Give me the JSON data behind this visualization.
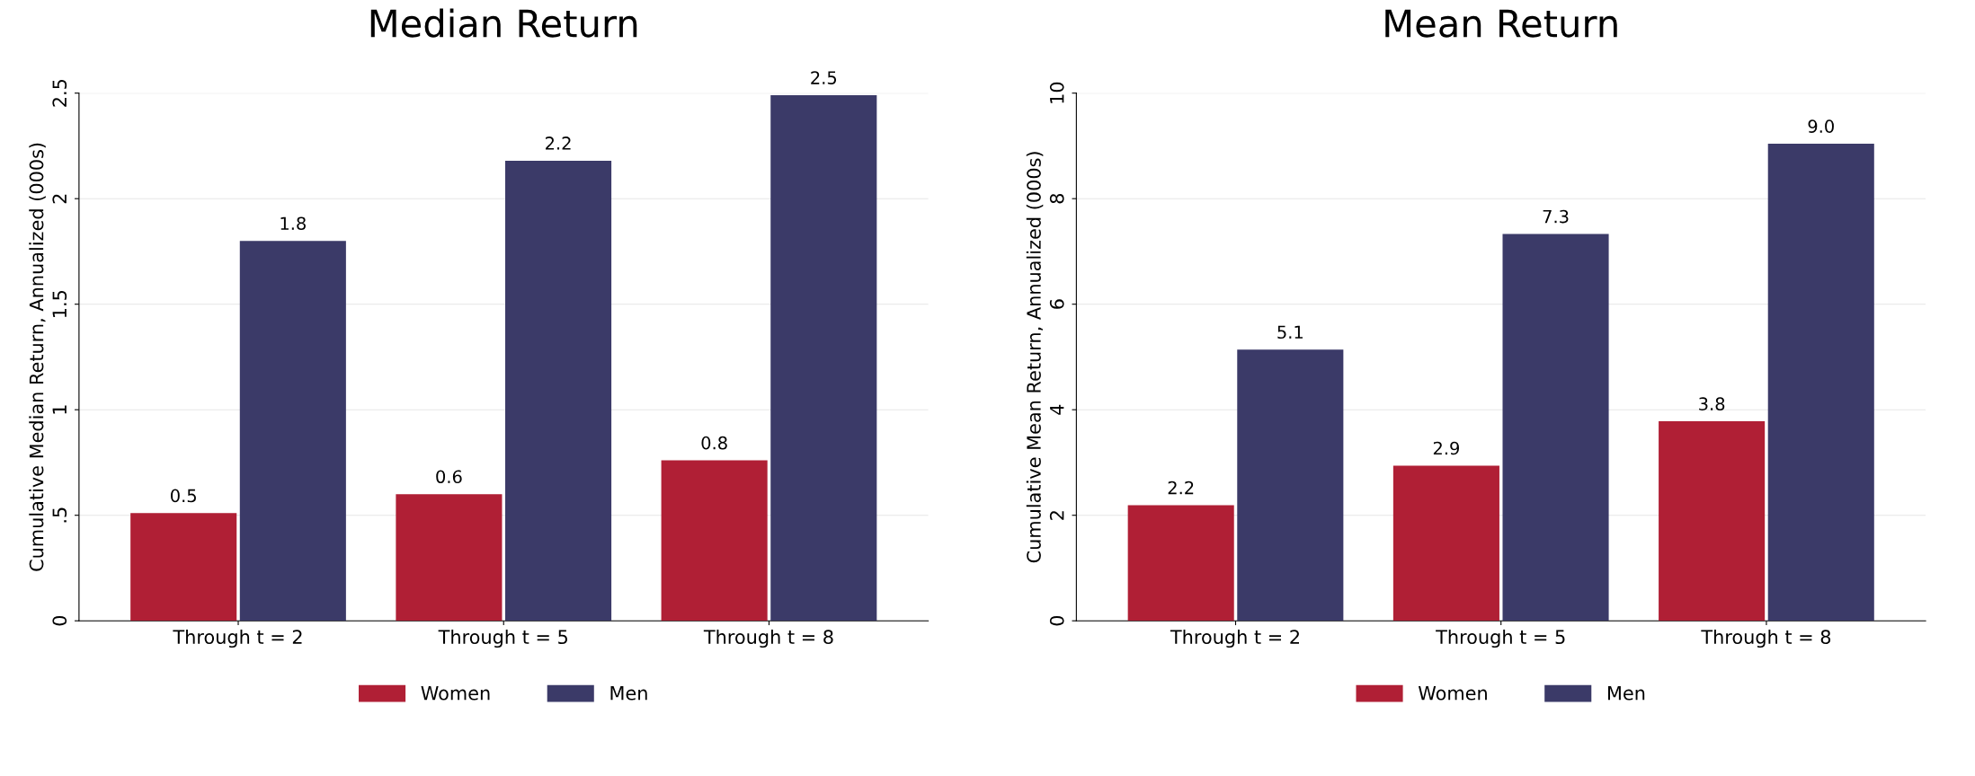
{
  "chart_data": [
    {
      "type": "bar",
      "title": "Median Return",
      "ylabel": "Cumulative Median Return, Annualized (000s)",
      "categories": [
        "Through t = 2",
        "Through t = 5",
        "Through t = 8"
      ],
      "series": [
        {
          "name": "Women",
          "color": "#b01f35",
          "values": [
            0.51,
            0.6,
            0.76
          ],
          "value_labels": [
            "0.5",
            "0.6",
            "0.8"
          ]
        },
        {
          "name": "Men",
          "color": "#3b3a68",
          "values": [
            1.8,
            2.18,
            2.49
          ],
          "value_labels": [
            "1.8",
            "2.2",
            "2.5"
          ]
        }
      ],
      "ylim": [
        0,
        2.5
      ],
      "yticks": [
        0,
        {
          "value": 0.5,
          "label": ".5"
        },
        1,
        1.5,
        2,
        2.5
      ],
      "grid": "y",
      "legend": "bottom"
    },
    {
      "type": "bar",
      "title": "Mean Return",
      "ylabel": "Cumulative Mean Return, Annualized (000s)",
      "categories": [
        "Through t = 2",
        "Through t = 5",
        "Through t = 8"
      ],
      "series": [
        {
          "name": "Women",
          "color": "#b01f35",
          "values": [
            2.19,
            2.94,
            3.78
          ],
          "value_labels": [
            "2.2",
            "2.9",
            "3.8"
          ]
        },
        {
          "name": "Men",
          "color": "#3b3a68",
          "values": [
            5.14,
            7.33,
            9.04
          ],
          "value_labels": [
            "5.1",
            "7.3",
            "9.0"
          ]
        }
      ],
      "ylim": [
        0,
        10
      ],
      "yticks": [
        0,
        2,
        4,
        6,
        8,
        10
      ],
      "grid": "y",
      "legend": "bottom"
    }
  ]
}
